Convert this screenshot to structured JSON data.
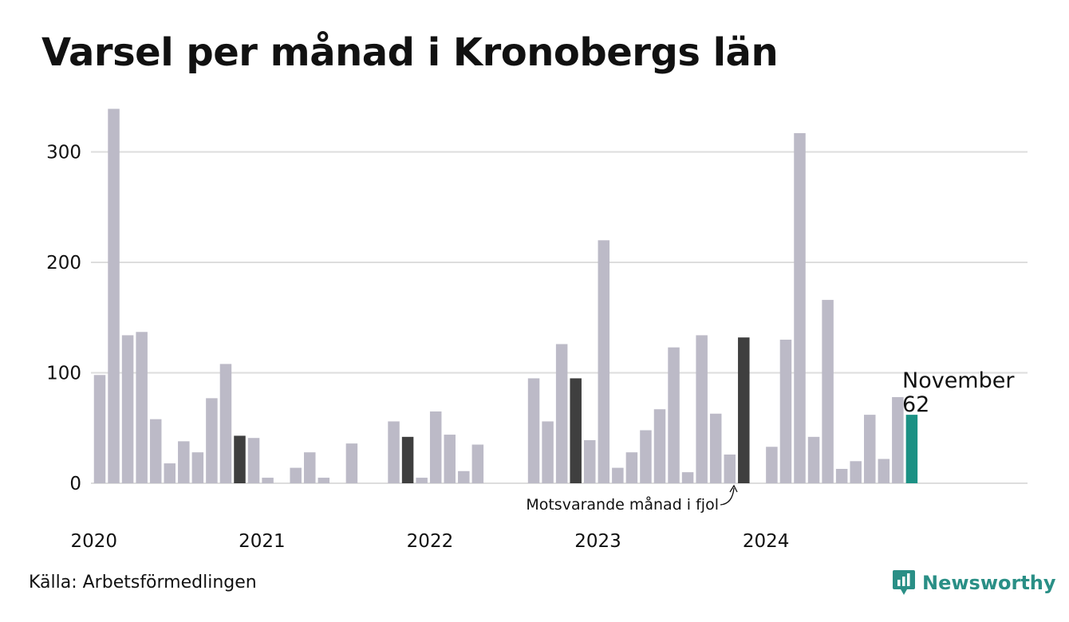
{
  "header": {
    "title": "Varsel per månad i Kronobergs län"
  },
  "footer": {
    "source": "Källa: Arbetsförmedlingen",
    "brand": "Newsworthy"
  },
  "colors": {
    "default_bar": "#bcbac7",
    "same_month_bar": "#3f3f3f",
    "current_bar": "#1b9184",
    "grid": "#dddddd",
    "brand": "#2a8f86"
  },
  "chart_data": {
    "type": "bar",
    "title": "Varsel per månad i Kronobergs län",
    "xlabel": "",
    "ylabel": "",
    "ylim": [
      0,
      340
    ],
    "yticks": [
      0,
      100,
      200,
      300
    ],
    "grid": true,
    "x_tick_labels": [
      "2020",
      "2021",
      "2022",
      "2023",
      "2024"
    ],
    "x": [
      "2020-01",
      "2020-02",
      "2020-03",
      "2020-04",
      "2020-05",
      "2020-06",
      "2020-07",
      "2020-08",
      "2020-09",
      "2020-10",
      "2020-11",
      "2020-12",
      "2021-01",
      "2021-02",
      "2021-03",
      "2021-04",
      "2021-05",
      "2021-06",
      "2021-07",
      "2021-08",
      "2021-09",
      "2021-10",
      "2021-11",
      "2021-12",
      "2022-01",
      "2022-02",
      "2022-03",
      "2022-04",
      "2022-05",
      "2022-06",
      "2022-07",
      "2022-08",
      "2022-09",
      "2022-10",
      "2022-11",
      "2022-12",
      "2023-01",
      "2023-02",
      "2023-03",
      "2023-04",
      "2023-05",
      "2023-06",
      "2023-07",
      "2023-08",
      "2023-09",
      "2023-10",
      "2023-11",
      "2023-12",
      "2024-01",
      "2024-02",
      "2024-03",
      "2024-04",
      "2024-05",
      "2024-06",
      "2024-07",
      "2024-08",
      "2024-09",
      "2024-10",
      "2024-11",
      "2024-12"
    ],
    "values": [
      98,
      339,
      134,
      137,
      58,
      18,
      38,
      28,
      77,
      108,
      43,
      41,
      5,
      0,
      14,
      28,
      5,
      0,
      36,
      0,
      0,
      56,
      42,
      5,
      65,
      44,
      11,
      35,
      0,
      0,
      0,
      95,
      56,
      126,
      95,
      39,
      220,
      14,
      28,
      48,
      67,
      123,
      10,
      134,
      63,
      26,
      132,
      0,
      33,
      130,
      317,
      42,
      166,
      13,
      20,
      62,
      22,
      78,
      62,
      null
    ],
    "same_month_previous_years": [
      "2020-11",
      "2021-11",
      "2022-11",
      "2023-11"
    ],
    "current": {
      "x": "2024-11",
      "value": 62,
      "label": "November",
      "value_label": "62"
    },
    "annotation": "Motsvarande månad i fjol"
  }
}
